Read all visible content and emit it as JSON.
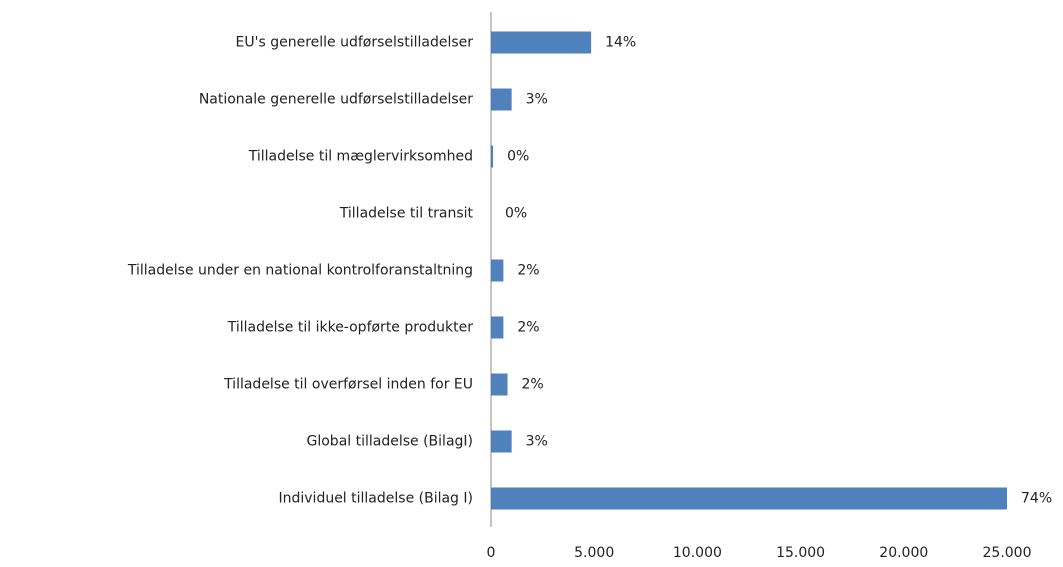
{
  "chart_data": {
    "type": "barh",
    "categories": [
      "EU's generelle udførselstilladelser",
      "Nationale generelle udførselstilladelser",
      "Tilladelse til mæglervirksomhed",
      "Tilladelse til transit",
      "Tilladelse under en national kontrolforanstaltning",
      "Tilladelse til ikke-opførte produkter",
      "Tilladelse til overførsel inden for EU",
      "Global tilladelse (BilagI)",
      "Individuel tilladelse (Bilag I)"
    ],
    "values": [
      4850,
      1000,
      100,
      0,
      600,
      600,
      800,
      1000,
      25000
    ],
    "value_labels": [
      "14%",
      "3%",
      "0%",
      "0%",
      "2%",
      "2%",
      "2%",
      "3%",
      "74%"
    ],
    "color": "#4f81bd",
    "xlim": [
      0,
      25000
    ],
    "xticks": [
      0,
      {
        "value": 5000,
        "label": "5.000"
      },
      {
        "value": 10000,
        "label": "10.000"
      },
      {
        "value": 15000,
        "label": "15.000"
      },
      {
        "value": 20000,
        "label": "20.000"
      },
      {
        "value": 25000,
        "label": "25.000"
      }
    ],
    "grid": false
  }
}
